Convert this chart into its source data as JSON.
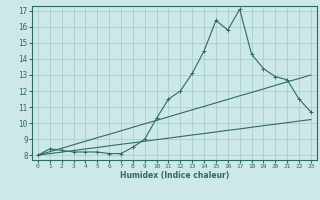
{
  "xlabel": "Humidex (Indice chaleur)",
  "bg_color": "#cce8e8",
  "line_color": "#2e6b5e",
  "grid_color": "#a8c8c8",
  "xlim": [
    -0.5,
    23.5
  ],
  "ylim": [
    7.7,
    17.3
  ],
  "xticks": [
    0,
    1,
    2,
    3,
    4,
    5,
    6,
    7,
    8,
    9,
    10,
    11,
    12,
    13,
    14,
    15,
    16,
    17,
    18,
    19,
    20,
    21,
    22,
    23
  ],
  "yticks": [
    8,
    9,
    10,
    11,
    12,
    13,
    14,
    15,
    16,
    17
  ],
  "line1_x": [
    0,
    1,
    2,
    3,
    4,
    5,
    6,
    7,
    8,
    9,
    10,
    11,
    12,
    13,
    14,
    15,
    16,
    17,
    18,
    19,
    20,
    21,
    22,
    23
  ],
  "line1_y": [
    8.0,
    8.4,
    8.3,
    8.2,
    8.2,
    8.2,
    8.1,
    8.1,
    8.5,
    9.0,
    10.3,
    11.5,
    12.0,
    13.1,
    14.5,
    16.4,
    15.8,
    17.1,
    14.3,
    13.4,
    12.9,
    12.7,
    11.5,
    10.7
  ],
  "line2_x": [
    0,
    1,
    2,
    3,
    4,
    5,
    6,
    7,
    8,
    9,
    10,
    11,
    12,
    13,
    14,
    15,
    16,
    17,
    18,
    19,
    20,
    21,
    22,
    23
  ],
  "line2_y": [
    8.0,
    8.22,
    8.43,
    8.65,
    8.87,
    9.09,
    9.3,
    9.52,
    9.74,
    9.96,
    10.17,
    10.39,
    10.61,
    10.83,
    11.04,
    11.26,
    11.48,
    11.7,
    11.91,
    12.13,
    12.35,
    12.57,
    12.78,
    13.0
  ],
  "line3_x": [
    0,
    1,
    2,
    3,
    4,
    5,
    6,
    7,
    8,
    9,
    10,
    11,
    12,
    13,
    14,
    15,
    16,
    17,
    18,
    19,
    20,
    21,
    22,
    23
  ],
  "line3_y": [
    8.0,
    8.1,
    8.19,
    8.29,
    8.39,
    8.48,
    8.58,
    8.68,
    8.77,
    8.87,
    8.97,
    9.06,
    9.16,
    9.26,
    9.35,
    9.45,
    9.55,
    9.64,
    9.74,
    9.84,
    9.93,
    10.03,
    10.13,
    10.22
  ]
}
